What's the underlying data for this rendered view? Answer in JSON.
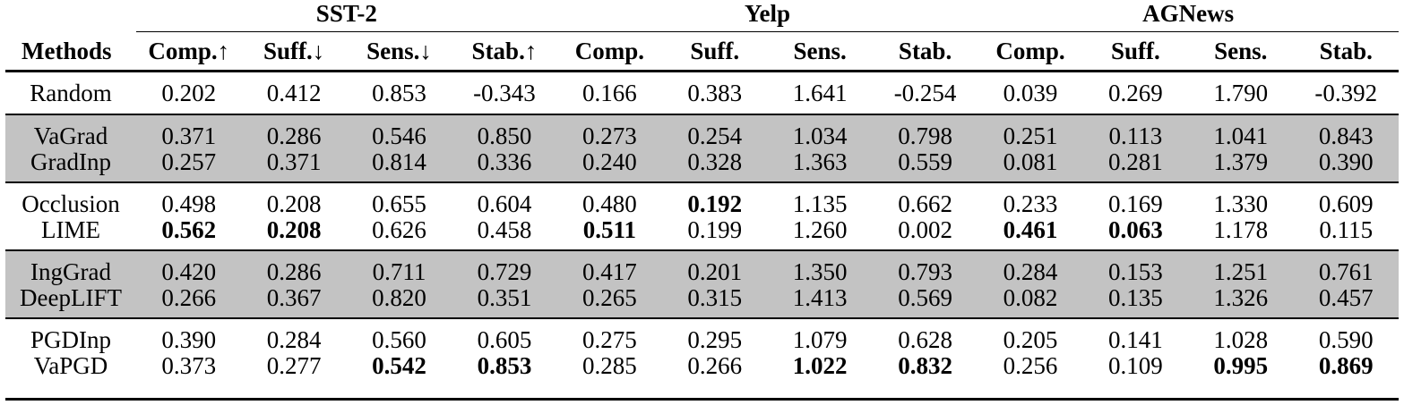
{
  "header": {
    "methods_label": "Methods",
    "groups": [
      "SST-2",
      "Yelp",
      "AGNews"
    ],
    "columns": [
      "Comp.↑",
      "Suff.↓",
      "Sens.↓",
      "Stab.↑",
      "Comp.",
      "Suff.",
      "Sens.",
      "Stab.",
      "Comp.",
      "Suff.",
      "Sens.",
      "Stab."
    ]
  },
  "rows": [
    {
      "method": "Random",
      "values": [
        "0.202",
        "0.412",
        "0.853",
        "-0.343",
        "0.166",
        "0.383",
        "1.641",
        "-0.254",
        "0.039",
        "0.269",
        "1.790",
        "-0.392"
      ],
      "bold": []
    },
    {
      "method": "VaGrad",
      "values": [
        "0.371",
        "0.286",
        "0.546",
        "0.850",
        "0.273",
        "0.254",
        "1.034",
        "0.798",
        "0.251",
        "0.113",
        "1.041",
        "0.843"
      ],
      "bold": []
    },
    {
      "method": "GradInp",
      "values": [
        "0.257",
        "0.371",
        "0.814",
        "0.336",
        "0.240",
        "0.328",
        "1.363",
        "0.559",
        "0.081",
        "0.281",
        "1.379",
        "0.390"
      ],
      "bold": []
    },
    {
      "method": "Occlusion",
      "values": [
        "0.498",
        "0.208",
        "0.655",
        "0.604",
        "0.480",
        "0.192",
        "1.135",
        "0.662",
        "0.233",
        "0.169",
        "1.330",
        "0.609"
      ],
      "bold": [
        5
      ]
    },
    {
      "method": "LIME",
      "values": [
        "0.562",
        "0.208",
        "0.626",
        "0.458",
        "0.511",
        "0.199",
        "1.260",
        "0.002",
        "0.461",
        "0.063",
        "1.178",
        "0.115"
      ],
      "bold": [
        0,
        1,
        4,
        8,
        9
      ]
    },
    {
      "method": "IngGrad",
      "values": [
        "0.420",
        "0.286",
        "0.711",
        "0.729",
        "0.417",
        "0.201",
        "1.350",
        "0.793",
        "0.284",
        "0.153",
        "1.251",
        "0.761"
      ],
      "bold": []
    },
    {
      "method": "DeepLIFT",
      "values": [
        "0.266",
        "0.367",
        "0.820",
        "0.351",
        "0.265",
        "0.315",
        "1.413",
        "0.569",
        "0.082",
        "0.135",
        "1.326",
        "0.457"
      ],
      "bold": []
    },
    {
      "method": "PGDInp",
      "values": [
        "0.390",
        "0.284",
        "0.560",
        "0.605",
        "0.275",
        "0.295",
        "1.079",
        "0.628",
        "0.205",
        "0.141",
        "1.028",
        "0.590"
      ],
      "bold": []
    },
    {
      "method": "VaPGD",
      "values": [
        "0.373",
        "0.277",
        "0.542",
        "0.853",
        "0.285",
        "0.266",
        "1.022",
        "0.832",
        "0.256",
        "0.109",
        "0.995",
        "0.869"
      ],
      "bold": [
        2,
        3,
        6,
        7,
        10,
        11
      ]
    }
  ],
  "groups_layout": [
    {
      "rows": [
        0
      ],
      "shaded": false
    },
    {
      "rows": [
        1,
        2
      ],
      "shaded": true
    },
    {
      "rows": [
        3,
        4
      ],
      "shaded": false
    },
    {
      "rows": [
        5,
        6
      ],
      "shaded": true
    },
    {
      "rows": [
        7,
        8
      ],
      "shaded": false
    }
  ]
}
